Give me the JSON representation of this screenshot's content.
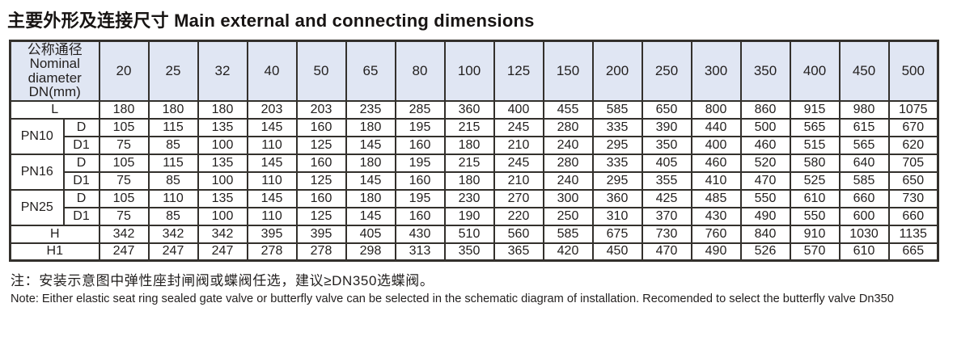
{
  "page": {
    "title": "主要外形及连接尺寸 Main external and connecting dimensions"
  },
  "table": {
    "corner_lines": [
      "公称通径",
      "Nominal",
      "diameter",
      "DN(mm)"
    ],
    "dn_columns": [
      "20",
      "25",
      "32",
      "40",
      "50",
      "65",
      "80",
      "100",
      "125",
      "150",
      "200",
      "250",
      "300",
      "350",
      "400",
      "450",
      "500"
    ],
    "rows": [
      {
        "type": "full",
        "label": "L",
        "values": [
          "180",
          "180",
          "180",
          "203",
          "203",
          "235",
          "285",
          "360",
          "400",
          "455",
          "585",
          "650",
          "800",
          "860",
          "915",
          "980",
          "1075"
        ]
      },
      {
        "type": "group-first",
        "group": "PN10",
        "sub": "D",
        "values": [
          "105",
          "115",
          "135",
          "145",
          "160",
          "180",
          "195",
          "215",
          "245",
          "280",
          "335",
          "390",
          "440",
          "500",
          "565",
          "615",
          "670"
        ]
      },
      {
        "type": "group-second",
        "group": "PN10",
        "sub": "D1",
        "values": [
          "75",
          "85",
          "100",
          "110",
          "125",
          "145",
          "160",
          "180",
          "210",
          "240",
          "295",
          "350",
          "400",
          "460",
          "515",
          "565",
          "620"
        ]
      },
      {
        "type": "group-first",
        "group": "PN16",
        "sub": "D",
        "values": [
          "105",
          "115",
          "135",
          "145",
          "160",
          "180",
          "195",
          "215",
          "245",
          "280",
          "335",
          "405",
          "460",
          "520",
          "580",
          "640",
          "705"
        ]
      },
      {
        "type": "group-second",
        "group": "PN16",
        "sub": "D1",
        "values": [
          "75",
          "85",
          "100",
          "110",
          "125",
          "145",
          "160",
          "180",
          "210",
          "240",
          "295",
          "355",
          "410",
          "470",
          "525",
          "585",
          "650"
        ]
      },
      {
        "type": "group-first",
        "group": "PN25",
        "sub": "D",
        "values": [
          "105",
          "110",
          "135",
          "145",
          "160",
          "180",
          "195",
          "230",
          "270",
          "300",
          "360",
          "425",
          "485",
          "550",
          "610",
          "660",
          "730"
        ]
      },
      {
        "type": "group-second",
        "group": "PN25",
        "sub": "D1",
        "values": [
          "75",
          "85",
          "100",
          "110",
          "125",
          "145",
          "160",
          "190",
          "220",
          "250",
          "310",
          "370",
          "430",
          "490",
          "550",
          "600",
          "660"
        ]
      },
      {
        "type": "full",
        "label": "H",
        "values": [
          "342",
          "342",
          "342",
          "395",
          "395",
          "405",
          "430",
          "510",
          "560",
          "585",
          "675",
          "730",
          "760",
          "840",
          "910",
          "1030",
          "1135"
        ]
      },
      {
        "type": "full",
        "label": "H1",
        "values": [
          "247",
          "247",
          "247",
          "278",
          "278",
          "298",
          "313",
          "350",
          "365",
          "420",
          "450",
          "470",
          "490",
          "526",
          "570",
          "610",
          "665"
        ]
      }
    ]
  },
  "notes": {
    "chinese": "注：安装示意图中弹性座封闸阀或蝶阀任选，建议≥DN350选蝶阀。",
    "english": "Note: Either elastic seat ring sealed gate valve or butterfly valve can be selected in the schematic diagram of installation. Recomended to select the butterfly valve Dn350"
  },
  "colors": {
    "header_bg": "#e0e6f3",
    "border": "#33302c",
    "text": "#221f1e"
  }
}
